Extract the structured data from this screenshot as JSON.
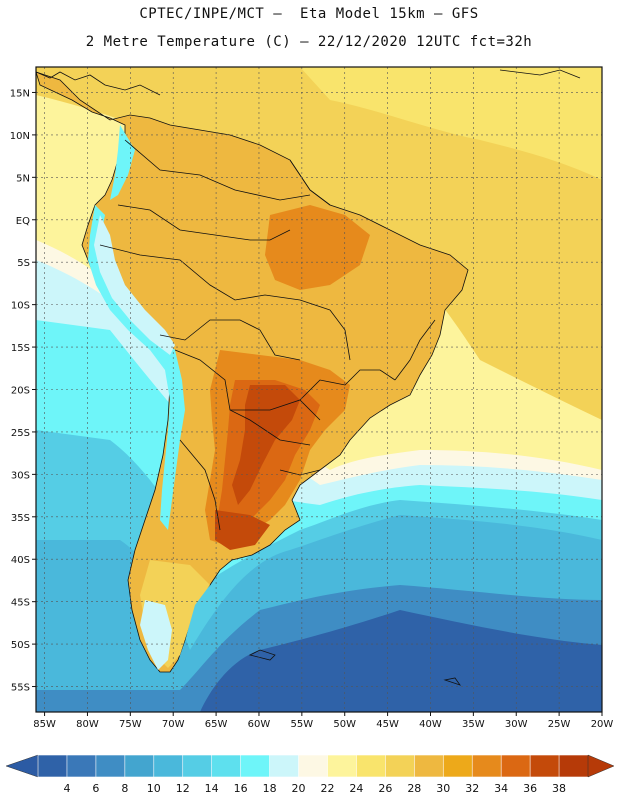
{
  "title_line1": "CPTEC/INPE/MCT –  Eta Model 15km – GFS",
  "title_line2": "2 Metre Temperature (C) – 22/12/2020 12UTC fct=32h",
  "lat_ticks": [
    "15N",
    "10N",
    "5N",
    "EQ",
    "5S",
    "10S",
    "15S",
    "20S",
    "25S",
    "30S",
    "35S",
    "40S",
    "45S",
    "50S",
    "55S"
  ],
  "lat_values": [
    15,
    10,
    5,
    0,
    -5,
    -10,
    -15,
    -20,
    -25,
    -30,
    -35,
    -40,
    -45,
    -50,
    -55
  ],
  "lon_ticks": [
    "85W",
    "80W",
    "75W",
    "70W",
    "65W",
    "60W",
    "55W",
    "50W",
    "45W",
    "40W",
    "35W",
    "30W",
    "25W",
    "20W"
  ],
  "lon_values": [
    -85,
    -80,
    -75,
    -70,
    -65,
    -60,
    -55,
    -50,
    -45,
    -40,
    -35,
    -30,
    -25,
    -20
  ],
  "lat_range": [
    -58,
    18
  ],
  "lon_range": [
    -86,
    -20
  ],
  "colorbar": {
    "labels": [
      "4",
      "6",
      "8",
      "10",
      "12",
      "14",
      "16",
      "18",
      "20",
      "22",
      "24",
      "26",
      "28",
      "30",
      "32",
      "34",
      "36",
      "38"
    ],
    "colors": [
      "#2f62a8",
      "#3a78b8",
      "#3f8dc4",
      "#43a5cf",
      "#4ab8db",
      "#55cde5",
      "#5ee0ee",
      "#6ef5f9",
      "#ccf6fa",
      "#fdf8e4",
      "#fdf49c",
      "#f9e46c",
      "#f3d257",
      "#eeb840",
      "#eda91a",
      "#e68a1c",
      "#db6813",
      "#c44a0a",
      "#b63a08"
    ],
    "left_arrow_color": "#2c5ba4",
    "right_arrow_color": "#b63a08"
  },
  "palette": {
    "deep_ocean": "#2f62a8",
    "ocean": "#3f8dc4",
    "mid_ocean": "#4ab8db",
    "cyan_ocean": "#55cde5",
    "light_cyan": "#6ef5f9",
    "pale": "#ccf6fa",
    "cream": "#fdf8e4",
    "warm_ocean": "#f9e46c",
    "tropic_ocean": "#f3d257",
    "land_warm": "#eeb840",
    "land_hot": "#e68a1c",
    "land_hotter": "#db6813",
    "land_hottest": "#c44a0a",
    "andes": "#6ef5f9"
  }
}
